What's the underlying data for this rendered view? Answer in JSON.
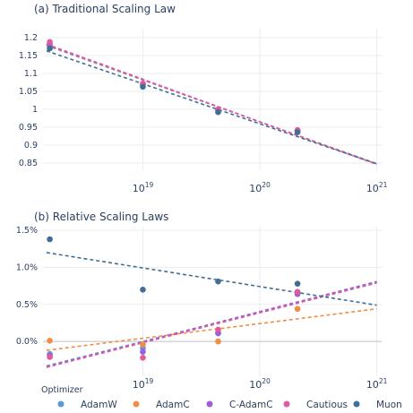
{
  "chart_data": [
    {
      "type": "scatter",
      "title": "(a) Traditional Scaling Law",
      "x_scale": "log",
      "xlim": [
        1.4e+18,
        1.1e+21
      ],
      "ylim": [
        0.83,
        1.225
      ],
      "x_ticks": [
        {
          "value": 1e+19,
          "base": "10",
          "exp": "19"
        },
        {
          "value": 1e+20,
          "base": "10",
          "exp": "20"
        },
        {
          "value": 1e+21,
          "base": "10",
          "exp": "21"
        }
      ],
      "y_ticks": [
        {
          "value": 0.85,
          "label": "0.85"
        },
        {
          "value": 0.9,
          "label": "0.9"
        },
        {
          "value": 0.95,
          "label": "0.95"
        },
        {
          "value": 1.0,
          "label": "1"
        },
        {
          "value": 1.05,
          "label": "1.05"
        },
        {
          "value": 1.1,
          "label": "1.1"
        },
        {
          "value": 1.15,
          "label": "1.15"
        },
        {
          "value": 1.2,
          "label": "1.2"
        }
      ],
      "grid": true,
      "series": [
        {
          "name": "AdamW",
          "color": "#5b9bd5",
          "points": [
            [
              1.6e+18,
              1.175
            ],
            [
              1e+19,
              1.068
            ],
            [
              4.4e+19,
              0.996
            ],
            [
              2.1e+20,
              0.939
            ]
          ],
          "fit": [
            [
              1.5e+18,
              1.178
            ],
            [
              1e+21,
              0.848
            ]
          ]
        },
        {
          "name": "AdamC",
          "color": "#f28e44",
          "points": [
            [
              1.6e+18,
              1.178
            ],
            [
              1e+19,
              1.069
            ],
            [
              4.4e+19,
              0.998
            ],
            [
              2.1e+20,
              0.94
            ]
          ],
          "fit": [
            [
              1.5e+18,
              1.179
            ],
            [
              1e+21,
              0.848
            ]
          ]
        },
        {
          "name": "C-AdamC",
          "color": "#9d5fd9",
          "points": [
            [
              1.6e+18,
              1.182
            ],
            [
              1e+19,
              1.071
            ],
            [
              4.4e+19,
              0.999
            ],
            [
              2.1e+20,
              0.941
            ]
          ],
          "fit": [
            [
              1.5e+18,
              1.18
            ],
            [
              1e+21,
              0.847
            ]
          ]
        },
        {
          "name": "Cautious",
          "color": "#e05aa0",
          "points": [
            [
              1.6e+18,
              1.188
            ],
            [
              1e+19,
              1.072
            ],
            [
              4.4e+19,
              1.0
            ],
            [
              2.1e+20,
              0.942
            ]
          ],
          "fit": [
            [
              1.5e+18,
              1.182
            ],
            [
              1e+21,
              0.846
            ]
          ]
        },
        {
          "name": "Muon",
          "color": "#3f6f96",
          "points": [
            [
              1.6e+18,
              1.17
            ],
            [
              1e+19,
              1.063
            ],
            [
              4.4e+19,
              0.992
            ],
            [
              2.1e+20,
              0.936
            ]
          ],
          "fit": [
            [
              1.5e+18,
              1.163
            ],
            [
              1e+21,
              0.848
            ]
          ]
        }
      ]
    },
    {
      "type": "scatter",
      "title": "(b) Relative Scaling Laws",
      "x_scale": "log",
      "xlim": [
        1.4e+18,
        1.1e+21
      ],
      "ylim": [
        -0.0047,
        0.0155
      ],
      "x_ticks": [
        {
          "value": 1e+19,
          "base": "10",
          "exp": "19"
        },
        {
          "value": 1e+20,
          "base": "10",
          "exp": "20"
        },
        {
          "value": 1e+21,
          "base": "10",
          "exp": "21"
        }
      ],
      "y_ticks": [
        {
          "value": 0.0,
          "label": "0.0%"
        },
        {
          "value": 0.005,
          "label": "0.5%"
        },
        {
          "value": 0.01,
          "label": "1.0%"
        },
        {
          "value": 0.015,
          "label": "1.5%"
        }
      ],
      "zero_line": true,
      "grid": true,
      "series": [
        {
          "name": "AdamW",
          "color": "#5b9bd5",
          "points": [
            [
              1.6e+18,
              -0.0017
            ],
            [
              1e+19,
              -0.0009
            ],
            [
              4.4e+19,
              0.0012
            ],
            [
              2.1e+20,
              0.0066
            ]
          ],
          "fit": [
            [
              1.5e+18,
              -0.0033
            ],
            [
              1e+21,
              0.008
            ]
          ]
        },
        {
          "name": "AdamC",
          "color": "#f28e44",
          "points": [
            [
              1.6e+18,
              0.0001
            ],
            [
              1e+19,
              -0.0004
            ],
            [
              4.4e+19,
              0.0
            ],
            [
              2.1e+20,
              0.0044
            ]
          ],
          "fit": [
            [
              1.5e+18,
              -0.0012
            ],
            [
              1e+21,
              0.0044
            ]
          ]
        },
        {
          "name": "C-AdamC",
          "color": "#9d5fd9",
          "points": [
            [
              1.6e+18,
              -0.0019
            ],
            [
              1e+19,
              -0.0014
            ],
            [
              4.4e+19,
              0.0011
            ],
            [
              2.1e+20,
              0.0064
            ]
          ],
          "fit": [
            [
              1.5e+18,
              -0.0034
            ],
            [
              1e+21,
              0.0081
            ]
          ]
        },
        {
          "name": "Cautious",
          "color": "#e05aa0",
          "points": [
            [
              1.6e+18,
              -0.0021
            ],
            [
              1e+19,
              -0.0022
            ],
            [
              4.4e+19,
              0.0016
            ],
            [
              2.1e+20,
              0.0067
            ]
          ],
          "fit": [
            [
              1.5e+18,
              -0.0035
            ],
            [
              1e+21,
              0.0079
            ]
          ]
        },
        {
          "name": "Muon",
          "color": "#3f6f96",
          "points": [
            [
              1.6e+18,
              0.0138
            ],
            [
              1e+19,
              0.007
            ],
            [
              4.4e+19,
              0.0081
            ],
            [
              2.1e+20,
              0.0078
            ]
          ],
          "fit": [
            [
              1.5e+18,
              0.012
            ],
            [
              1e+21,
              0.0049
            ]
          ]
        }
      ]
    }
  ],
  "legend": {
    "title": "Optimizer",
    "placement": "bottom",
    "items": [
      {
        "name": "AdamW",
        "color": "#5b9bd5"
      },
      {
        "name": "AdamC",
        "color": "#f28e44"
      },
      {
        "name": "C-AdamC",
        "color": "#9d5fd9"
      },
      {
        "name": "Cautious",
        "color": "#e05aa0"
      },
      {
        "name": "Muon",
        "color": "#3f6f96"
      }
    ]
  },
  "colors": {
    "grid": "#ebedf0",
    "zero_line": "#cfd3d8",
    "tick_text": "#2a3f5f"
  }
}
